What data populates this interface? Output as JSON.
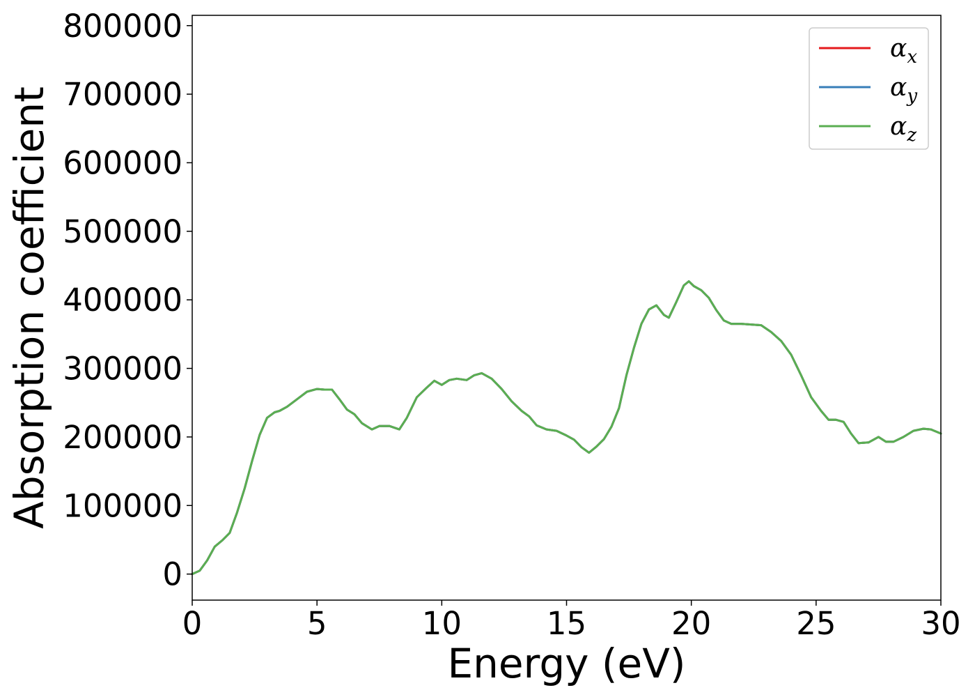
{
  "chart_data": {
    "type": "line",
    "title": "",
    "xlabel": "Energy (eV)",
    "ylabel": "Absorption coefficient",
    "xlim": [
      0,
      30
    ],
    "ylim": [
      -38000,
      815000
    ],
    "xticks": [
      0,
      5,
      10,
      15,
      20,
      25,
      30
    ],
    "xtick_labels": [
      "0",
      "5",
      "10",
      "15",
      "20",
      "25",
      "30"
    ],
    "yticks": [
      0,
      100000,
      200000,
      300000,
      400000,
      500000,
      600000,
      700000,
      800000
    ],
    "ytick_labels": [
      "0",
      "100000",
      "200000",
      "300000",
      "400000",
      "500000",
      "600000",
      "700000",
      "800000"
    ],
    "grid": false,
    "legend_position": "top-right",
    "x": [
      0,
      0.3,
      0.6,
      0.9,
      1.2,
      1.5,
      1.8,
      2.1,
      2.4,
      2.7,
      3.0,
      3.3,
      3.5,
      3.8,
      4.2,
      4.6,
      5.0,
      5.3,
      5.6,
      5.9,
      6.2,
      6.5,
      6.8,
      7.2,
      7.5,
      7.9,
      8.3,
      8.6,
      9.0,
      9.4,
      9.7,
      10.0,
      10.3,
      10.6,
      11.0,
      11.3,
      11.6,
      12.0,
      12.4,
      12.8,
      13.2,
      13.5,
      13.8,
      14.2,
      14.6,
      15.0,
      15.3,
      15.6,
      15.9,
      16.2,
      16.5,
      16.8,
      17.1,
      17.4,
      17.7,
      18.0,
      18.3,
      18.6,
      18.9,
      19.1,
      19.4,
      19.7,
      19.9,
      20.1,
      20.4,
      20.7,
      21.0,
      21.3,
      21.6,
      22.0,
      22.4,
      22.8,
      23.2,
      23.6,
      24.0,
      24.4,
      24.8,
      25.2,
      25.5,
      25.8,
      26.1,
      26.4,
      26.7,
      27.1,
      27.5,
      27.8,
      28.1,
      28.5,
      28.9,
      29.3,
      29.6,
      30.0
    ],
    "series": [
      {
        "name": "α_x",
        "label_main": "α",
        "label_sub": "x",
        "color": "#e41a1c",
        "y": [
          0,
          5000,
          20000,
          40000,
          49000,
          60000,
          90000,
          125000,
          165000,
          203000,
          228000,
          236000,
          238000,
          244000,
          255000,
          266000,
          270000,
          269000,
          269000,
          255000,
          240000,
          233000,
          220000,
          211000,
          216000,
          216000,
          211000,
          228000,
          258000,
          272000,
          282000,
          276000,
          283000,
          285000,
          283000,
          290000,
          293000,
          285000,
          270000,
          252000,
          238000,
          230000,
          217000,
          211000,
          209000,
          202000,
          196000,
          185000,
          177000,
          186000,
          197000,
          215000,
          242000,
          290000,
          330000,
          365000,
          386000,
          392000,
          378000,
          374000,
          397000,
          421000,
          427000,
          420000,
          414000,
          403000,
          385000,
          370000,
          365000,
          365000,
          364000,
          363000,
          353000,
          340000,
          320000,
          290000,
          258000,
          238000,
          225000,
          225000,
          222000,
          205000,
          191000,
          192000,
          200000,
          193000,
          193000,
          200000,
          209000,
          212000,
          211000,
          205000
        ]
      },
      {
        "name": "α_y",
        "label_main": "α",
        "label_sub": "y",
        "color": "#377eb8",
        "y": [
          0,
          5000,
          20000,
          40000,
          49000,
          60000,
          90000,
          125000,
          165000,
          203000,
          228000,
          236000,
          238000,
          244000,
          255000,
          266000,
          270000,
          269000,
          269000,
          255000,
          240000,
          233000,
          220000,
          211000,
          216000,
          216000,
          211000,
          228000,
          258000,
          272000,
          282000,
          276000,
          283000,
          285000,
          283000,
          290000,
          293000,
          285000,
          270000,
          252000,
          238000,
          230000,
          217000,
          211000,
          209000,
          202000,
          196000,
          185000,
          177000,
          186000,
          197000,
          215000,
          242000,
          290000,
          330000,
          365000,
          386000,
          392000,
          378000,
          374000,
          397000,
          421000,
          427000,
          420000,
          414000,
          403000,
          385000,
          370000,
          365000,
          365000,
          364000,
          363000,
          353000,
          340000,
          320000,
          290000,
          258000,
          238000,
          225000,
          225000,
          222000,
          205000,
          191000,
          192000,
          200000,
          193000,
          193000,
          200000,
          209000,
          212000,
          211000,
          205000
        ]
      },
      {
        "name": "α_z",
        "label_main": "α",
        "label_sub": "z",
        "color": "#5aae52",
        "y": [
          0,
          5000,
          20000,
          40000,
          49000,
          60000,
          90000,
          125000,
          165000,
          203000,
          228000,
          236000,
          238000,
          244000,
          255000,
          266000,
          270000,
          269000,
          269000,
          255000,
          240000,
          233000,
          220000,
          211000,
          216000,
          216000,
          211000,
          228000,
          258000,
          272000,
          282000,
          276000,
          283000,
          285000,
          283000,
          290000,
          293000,
          285000,
          270000,
          252000,
          238000,
          230000,
          217000,
          211000,
          209000,
          202000,
          196000,
          185000,
          177000,
          186000,
          197000,
          215000,
          242000,
          290000,
          330000,
          365000,
          386000,
          392000,
          378000,
          374000,
          397000,
          421000,
          427000,
          420000,
          414000,
          403000,
          385000,
          370000,
          365000,
          365000,
          364000,
          363000,
          353000,
          340000,
          320000,
          290000,
          258000,
          238000,
          225000,
          225000,
          222000,
          205000,
          191000,
          192000,
          200000,
          193000,
          193000,
          200000,
          209000,
          212000,
          211000,
          205000
        ]
      }
    ]
  }
}
